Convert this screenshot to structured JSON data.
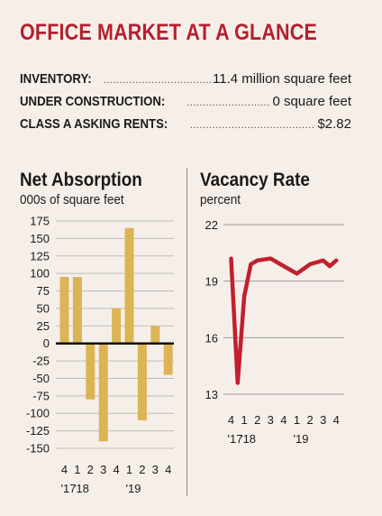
{
  "header": {
    "title": "OFFICE MARKET AT A GLANCE"
  },
  "stats": [
    {
      "label": "INVENTORY:",
      "dots": "......................................",
      "value": "11.4 million square feet"
    },
    {
      "label": "UNDER CONSTRUCTION:",
      "dots": "......................................",
      "value": "0 square feet"
    },
    {
      "label": "CLASS A ASKING RENTS:",
      "dots": "................................................",
      "value": "$2.82"
    }
  ],
  "chart_data": [
    {
      "type": "bar",
      "title": "Net Absorption",
      "subtitle": "000s of square feet",
      "categories": [
        "4",
        "1",
        "2",
        "3",
        "4",
        "1",
        "2",
        "3",
        "4"
      ],
      "year_labels": [
        {
          "label": "'17",
          "at": 0
        },
        {
          "label": "'18",
          "at": 1
        },
        {
          "label": "'19",
          "at": 5
        }
      ],
      "values": [
        95,
        95,
        -80,
        -140,
        50,
        165,
        -110,
        25,
        -45
      ],
      "ylim": [
        -150,
        175
      ],
      "yticks": [
        175,
        150,
        125,
        100,
        75,
        50,
        25,
        0,
        -25,
        -50,
        -75,
        -100,
        -125,
        -150
      ],
      "colors": {
        "bar": "#dcb455",
        "zero_line": "#111111",
        "grid": "#bdbdbd"
      }
    },
    {
      "type": "line",
      "title": "Vacancy Rate",
      "subtitle": "percent",
      "categories": [
        "4",
        "1",
        "2",
        "3",
        "4",
        "1",
        "2",
        "3",
        "4"
      ],
      "year_labels": [
        {
          "label": "'17",
          "at": 0
        },
        {
          "label": "'18",
          "at": 1
        },
        {
          "label": "'19",
          "at": 5
        }
      ],
      "x": [
        0,
        0.5,
        1,
        1.5,
        2,
        3,
        4,
        5,
        6,
        7,
        7.5,
        8
      ],
      "values": [
        20.2,
        13.6,
        18.2,
        19.9,
        20.1,
        20.2,
        19.8,
        19.4,
        19.9,
        20.1,
        19.8,
        20.1
      ],
      "ylim": [
        13,
        22
      ],
      "yticks": [
        22,
        19,
        16,
        13
      ],
      "colors": {
        "line": "#c1202e",
        "grid": "#9a9a9a"
      }
    }
  ]
}
